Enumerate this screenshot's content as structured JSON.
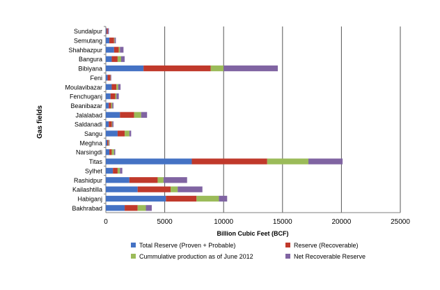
{
  "chart_data": {
    "type": "bar",
    "orientation": "horizontal",
    "stacked": true,
    "ylabel": "Gas fields",
    "xlabel": "Billion Cubic Feet (BCF)",
    "xlim": [
      0,
      25000
    ],
    "xticks": [
      "0",
      "5000",
      "10000",
      "15000",
      "20000",
      "25000"
    ],
    "grid": true,
    "legend_position": "bottom",
    "categories": [
      "Sundalpur",
      "Semutang",
      "Shahbazpur",
      "Bangura",
      "Bibiyana",
      "Feni",
      "Moulavibazar",
      "Fenchuganj",
      "Beanibazar",
      "Jalalabad",
      "Saldanadi",
      "Sangu",
      "Meghna",
      "Narsingdi",
      "Titas",
      "Sylhet",
      "Rashidpur",
      "Kailashtilla",
      "Habiganj",
      "Bakhrabad"
    ],
    "series": [
      {
        "name": "Total Reserve (Proven + Probable)",
        "color": "#4472c4",
        "values": [
          60,
          300,
          700,
          500,
          3200,
          150,
          500,
          400,
          250,
          1200,
          250,
          1000,
          120,
          300,
          7300,
          600,
          2000,
          2700,
          5100,
          1600
        ]
      },
      {
        "name": "Reserve (Recoverable)",
        "color": "#c0392b",
        "values": [
          100,
          400,
          400,
          500,
          5700,
          250,
          400,
          400,
          200,
          1200,
          250,
          600,
          100,
          200,
          6400,
          400,
          2400,
          2800,
          2600,
          1100
        ]
      },
      {
        "name": "Cummulative production as of June 2012",
        "color": "#9bbb59",
        "values": [
          0,
          50,
          100,
          300,
          1100,
          10,
          150,
          100,
          100,
          600,
          50,
          400,
          50,
          200,
          3500,
          200,
          500,
          600,
          1900,
          700
        ]
      },
      {
        "name": "Net Recoverable Reserve",
        "color": "#8064a2",
        "values": [
          100,
          100,
          300,
          300,
          4600,
          50,
          200,
          200,
          100,
          500,
          100,
          150,
          50,
          100,
          2900,
          200,
          2000,
          2100,
          700,
          500
        ]
      }
    ]
  }
}
